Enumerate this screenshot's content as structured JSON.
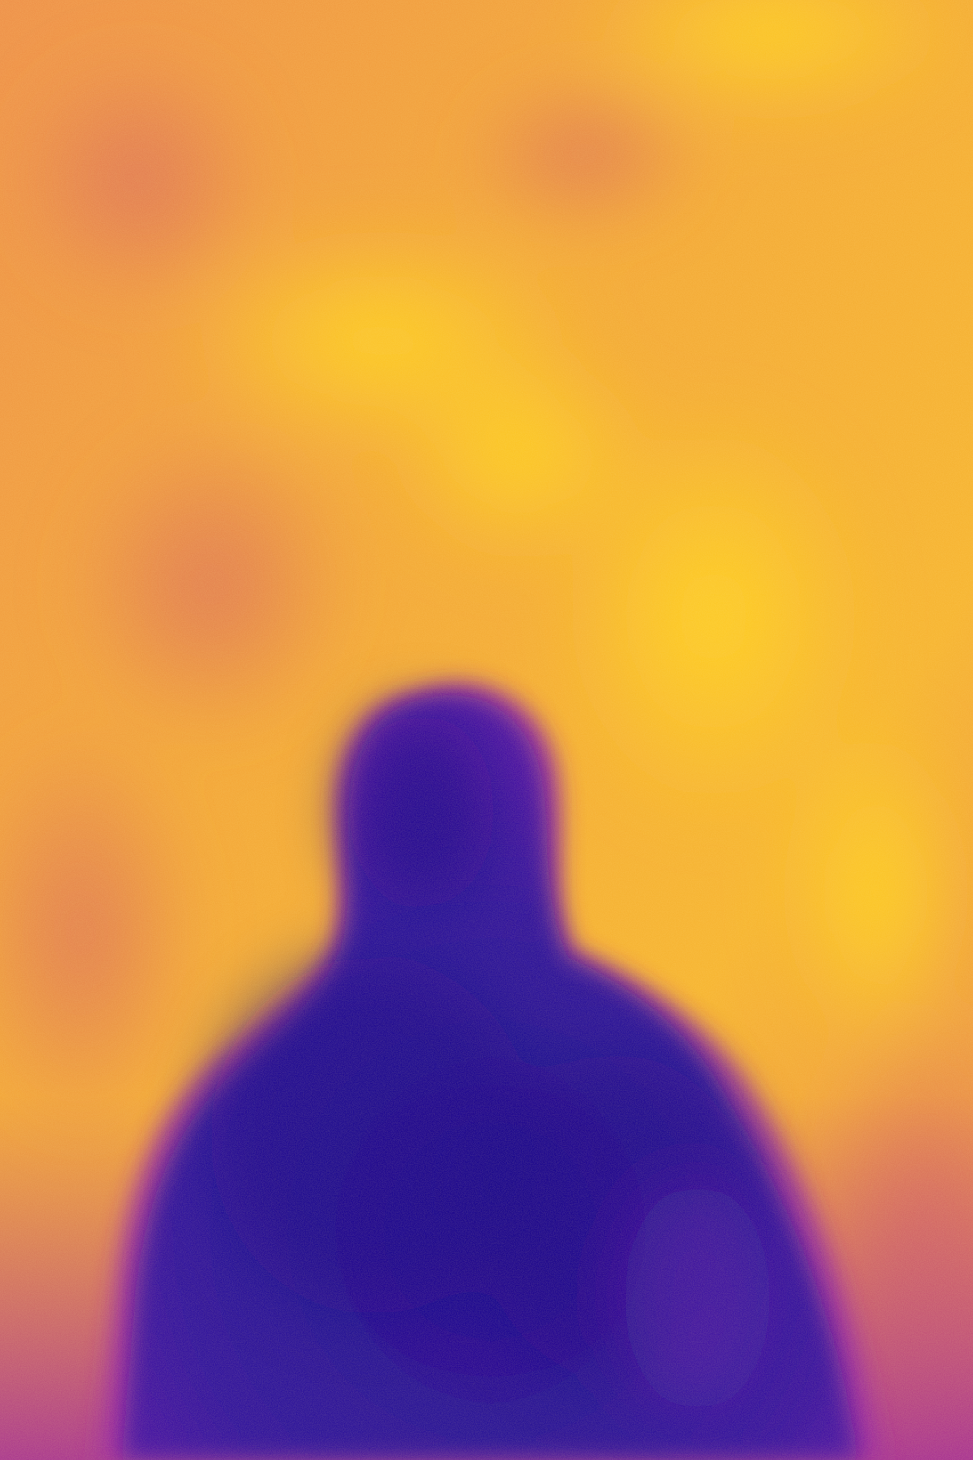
{
  "image": {
    "kind": "thermal-camera-frame",
    "palette": "plasma",
    "subject": "human-silhouette",
    "colors": {
      "background_warm": "#f0a23a",
      "background_mid": "#e98a45",
      "background_hot": "#ffc928",
      "background_pink": "#d8745a",
      "edge_magenta": "#b13a8c",
      "edge_violet": "#7a16b8",
      "figure_core": "#22079a",
      "figure_deep": "#15058c"
    }
  }
}
